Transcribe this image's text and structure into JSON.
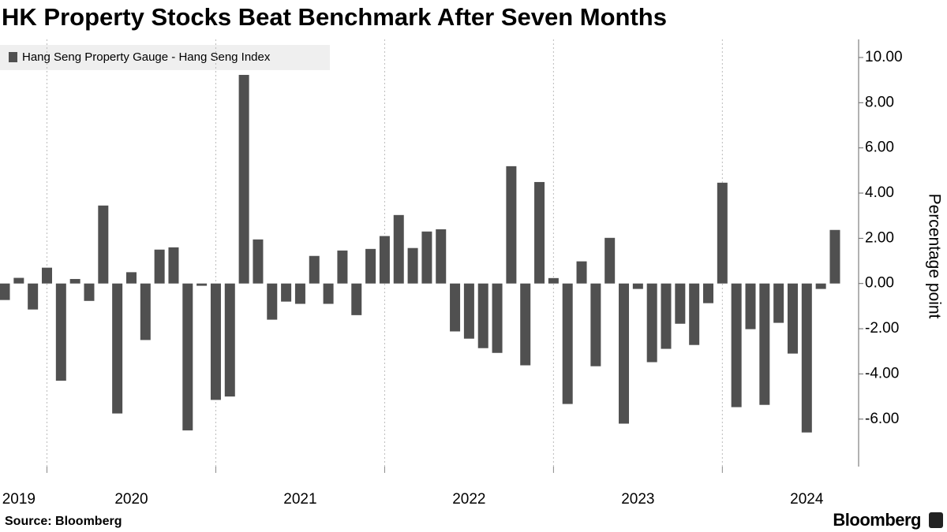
{
  "chart_data": {
    "type": "bar",
    "title": "HK Property Stocks Beat Benchmark After Seven Months",
    "series": [
      {
        "name": "Hang Seng Property Gauge - Hang Seng Index",
        "color": "#505050",
        "values": [
          -0.73,
          0.25,
          -1.15,
          0.7,
          -4.3,
          0.2,
          -0.77,
          3.45,
          -5.75,
          0.5,
          -2.5,
          1.5,
          1.6,
          -6.5,
          -0.1,
          -5.15,
          -5.0,
          9.23,
          1.95,
          -1.6,
          -0.8,
          -0.9,
          1.22,
          -0.9,
          1.46,
          -1.4,
          1.53,
          2.1,
          3.03,
          1.57,
          2.3,
          2.4,
          -2.12,
          -2.44,
          -2.86,
          -3.07,
          5.19,
          -3.62,
          4.49,
          0.24,
          -5.33,
          0.98,
          -3.66,
          2.02,
          -6.2,
          -0.24,
          -3.48,
          -2.89,
          -1.78,
          -2.72,
          -0.87,
          4.46,
          -5.47,
          -2.02,
          -5.37,
          -1.74,
          -3.1,
          -6.59,
          -0.24,
          2.37
        ]
      }
    ],
    "categories": [
      null,
      "2019",
      null,
      null,
      null,
      null,
      null,
      null,
      null,
      "2020",
      null,
      null,
      null,
      null,
      null,
      null,
      null,
      null,
      null,
      null,
      null,
      "2021",
      null,
      null,
      null,
      null,
      null,
      null,
      null,
      null,
      null,
      null,
      null,
      "2022",
      null,
      null,
      null,
      null,
      null,
      null,
      null,
      null,
      null,
      null,
      null,
      "2023",
      null,
      null,
      null,
      null,
      null,
      null,
      null,
      null,
      null,
      null,
      null,
      "2024",
      null,
      null
    ],
    "ylabel": "Percentage point",
    "ylim": [
      -8.1,
      10.8
    ],
    "yticks": [
      {
        "value": -6,
        "label": "-6.00"
      },
      {
        "value": -4,
        "label": "-4.00"
      },
      {
        "value": -2,
        "label": "-2.00"
      },
      {
        "value": 0,
        "label": "0.00"
      },
      {
        "value": 2,
        "label": "2.00"
      },
      {
        "value": 4,
        "label": "4.00"
      },
      {
        "value": 6,
        "label": "6.00"
      },
      {
        "value": 8,
        "label": "8.00"
      },
      {
        "value": 10,
        "label": "10.00"
      }
    ],
    "source": "Source: Bloomberg",
    "brand": "Bloomberg"
  }
}
